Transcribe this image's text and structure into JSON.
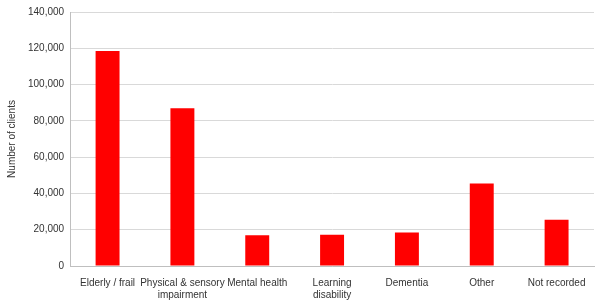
{
  "chart_data": {
    "type": "bar",
    "y_label": "Number of clients",
    "categories": [
      "Elderly / frail",
      "Physical & sensory impairment",
      "Mental health",
      "Learning disability",
      "Dementia",
      "Other",
      "Not recorded"
    ],
    "values": [
      118500,
      87000,
      17000,
      17200,
      18500,
      45500,
      25500
    ],
    "color": "#ff0000",
    "ylim": [
      0,
      140000
    ],
    "yticks": [
      0,
      {
        "value": 20000,
        "label": "20,000"
      },
      {
        "value": 40000,
        "label": "40,000"
      },
      {
        "value": 60000,
        "label": "60,000"
      },
      {
        "value": 80000,
        "label": "80,000"
      },
      {
        "value": 100000,
        "label": "100,000"
      },
      {
        "value": 120000,
        "label": "120,000"
      },
      {
        "value": 140000,
        "label": "140,000"
      }
    ],
    "grid": true
  }
}
